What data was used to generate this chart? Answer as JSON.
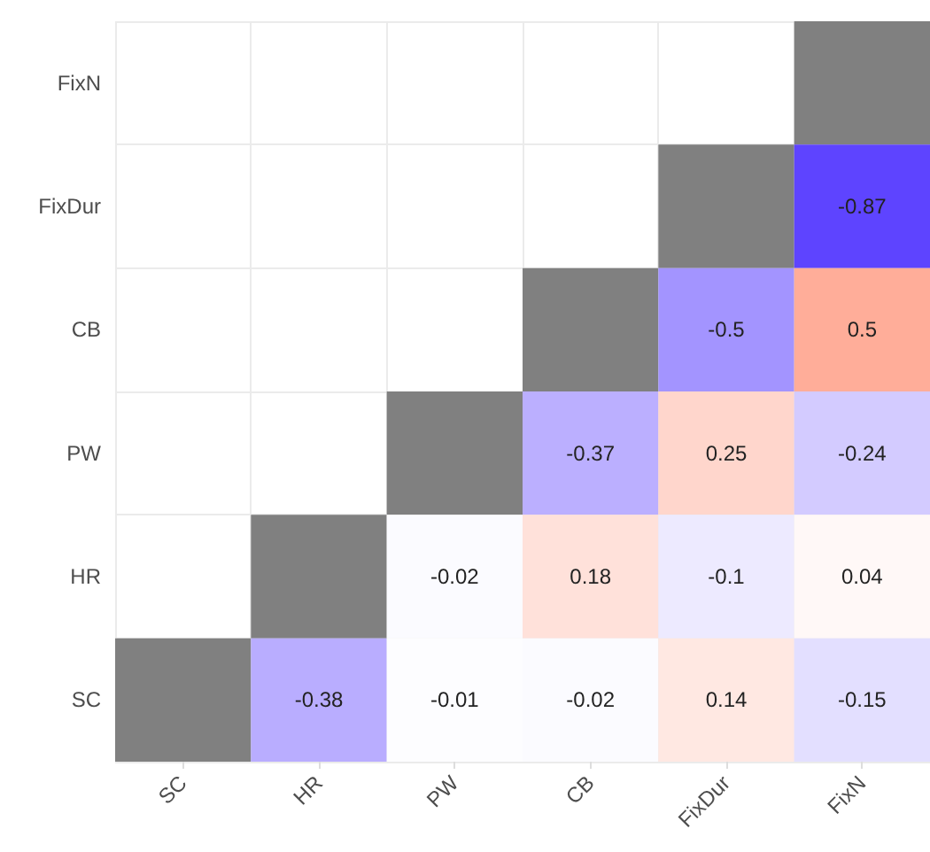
{
  "chart_data": {
    "type": "heatmap",
    "categories": [
      "SC",
      "HR",
      "PW",
      "CB",
      "FixDur",
      "FixN"
    ],
    "y_categories": [
      "FixN",
      "FixDur",
      "CB",
      "PW",
      "HR",
      "SC"
    ],
    "cells": [
      [
        null,
        null,
        null,
        null,
        null,
        null
      ],
      [
        null,
        null,
        null,
        null,
        null,
        -0.87
      ],
      [
        null,
        null,
        null,
        null,
        -0.5,
        0.5
      ],
      [
        null,
        null,
        null,
        -0.37,
        0.25,
        -0.24
      ],
      [
        null,
        null,
        -0.02,
        0.18,
        -0.1,
        0.04
      ],
      [
        null,
        -0.38,
        -0.01,
        -0.02,
        0.14,
        -0.15
      ]
    ],
    "data_labels": true,
    "grid": true
  }
}
